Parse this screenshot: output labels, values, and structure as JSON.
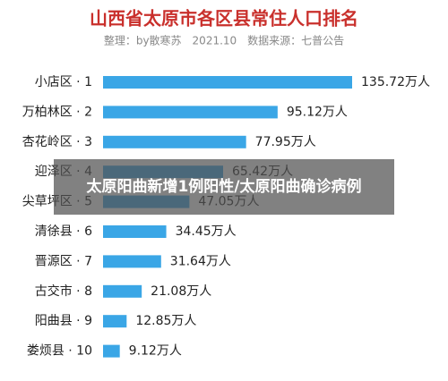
{
  "chart_data": {
    "type": "barh",
    "title": "山西省太原市各区县常住人口排名",
    "subtitle": "整理：by散寒苏　2021.10　数据来源：七普公告",
    "categories": [
      "小店区 · 1",
      "万柏林区 · 2",
      "杏花岭区 · 3",
      "迎泽区 · 4",
      "尖草坪区 · 5",
      "清徐县 · 6",
      "晋源区 · 7",
      "古交市 · 8",
      "阳曲县 · 9",
      "娄烦县 · 10"
    ],
    "values": [
      135.72,
      95.12,
      77.95,
      65.42,
      47.05,
      34.45,
      31.64,
      21.08,
      12.85,
      9.12
    ],
    "value_labels": [
      "135.72万人",
      "95.12万人",
      "77.95万人",
      "65.42万人",
      "47.05万人",
      "34.45万人",
      "31.64万人",
      "21.08万人",
      "12.85万人",
      "9.12万人"
    ],
    "color": "#3aa6e6"
  },
  "overlay": {
    "text": "太原阳曲新增1例阳性/太原阳曲确诊病例"
  }
}
